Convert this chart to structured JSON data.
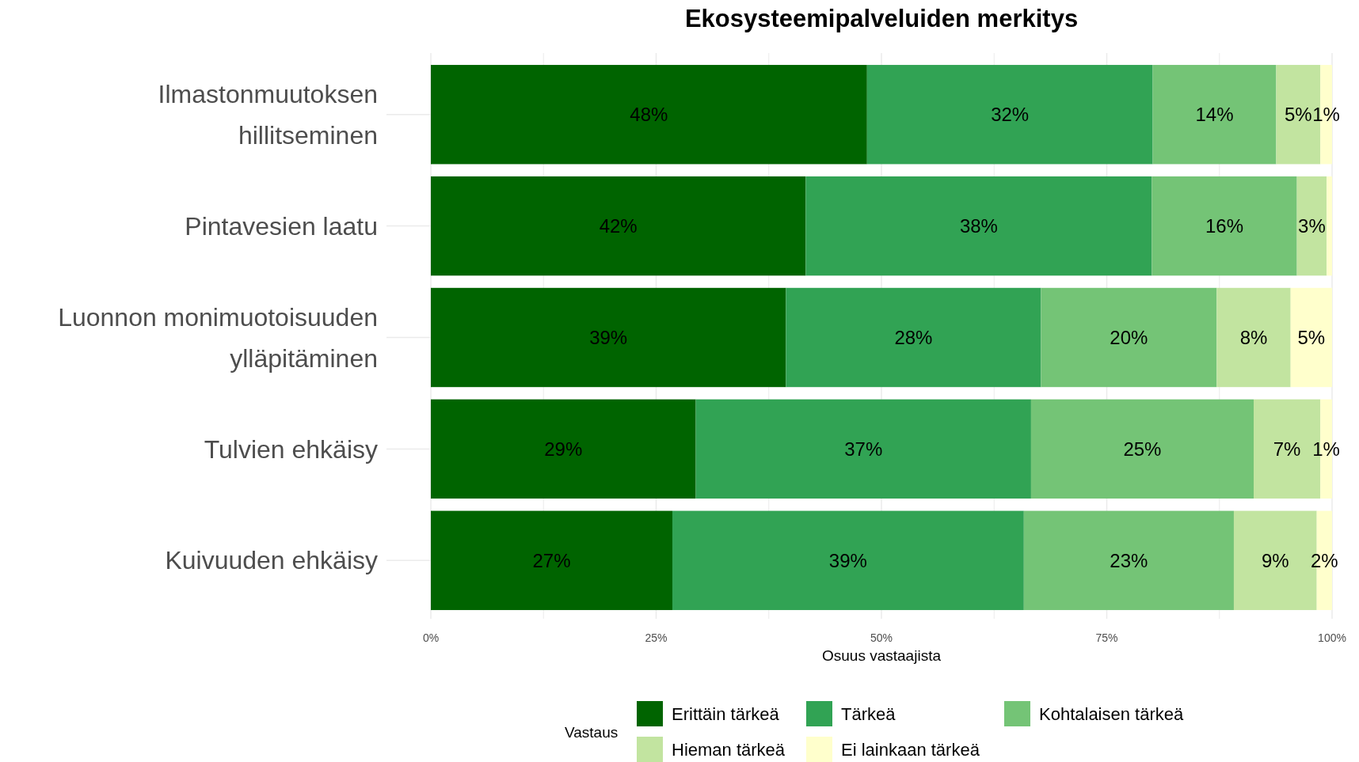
{
  "chart_data": {
    "type": "bar",
    "orientation": "horizontal",
    "stacked": true,
    "title": "Ekosysteemipalveluiden merkitys",
    "xlabel": "Osuus vastaajista",
    "legend_title": "Vastaus",
    "legend": "bottom",
    "grid": "x",
    "categories": [
      "Ilmastonmuutoksen hillitseminen",
      "Pintavesien laatu",
      "Luonnon monimuotoisuuden ylläpitäminen",
      "Tulvien ehkäisy",
      "Kuivuuden ehkäisy"
    ],
    "xlim": [
      0,
      100
    ],
    "xticks": [
      {
        "value": 0,
        "label": "0%"
      },
      {
        "value": 12.5,
        "label": null
      },
      {
        "value": 25,
        "label": "25%"
      },
      {
        "value": 37.5,
        "label": null
      },
      {
        "value": 50,
        "label": "50%"
      },
      {
        "value": 62.5,
        "label": null
      },
      {
        "value": 75,
        "label": "75%"
      },
      {
        "value": 87.5,
        "label": null
      },
      {
        "value": 100,
        "label": "100%"
      }
    ],
    "series": [
      {
        "name": "Erittäin tärkeä",
        "color": "#006400",
        "values": [
          48.4,
          41.6,
          39.4,
          29.4,
          26.8
        ],
        "value_labels": [
          "48%",
          "42%",
          "39%",
          "29%",
          "27%"
        ]
      },
      {
        "name": "Tärkeä",
        "color": "#31a354",
        "values": [
          31.7,
          38.4,
          28.3,
          37.2,
          39.0
        ],
        "value_labels": [
          "32%",
          "38%",
          "28%",
          "37%",
          "39%"
        ]
      },
      {
        "name": "Kohtalaisen tärkeä",
        "color": "#74c476",
        "values": [
          13.7,
          16.1,
          19.5,
          24.7,
          23.3
        ],
        "value_labels": [
          "14%",
          "16%",
          "20%",
          "25%",
          "23%"
        ]
      },
      {
        "name": "Hieman tärkeä",
        "color": "#c2e4a0",
        "values": [
          4.9,
          3.3,
          8.2,
          7.4,
          9.2
        ],
        "value_labels": [
          "5%",
          "3%",
          "8%",
          "7%",
          "9%"
        ]
      },
      {
        "name": "Ei lainkaan tärkeä",
        "color": "#ffffcc",
        "values": [
          1.3,
          0.6,
          4.6,
          1.3,
          1.7
        ],
        "value_labels": [
          "1%",
          null,
          "5%",
          "1%",
          "2%"
        ]
      }
    ]
  }
}
